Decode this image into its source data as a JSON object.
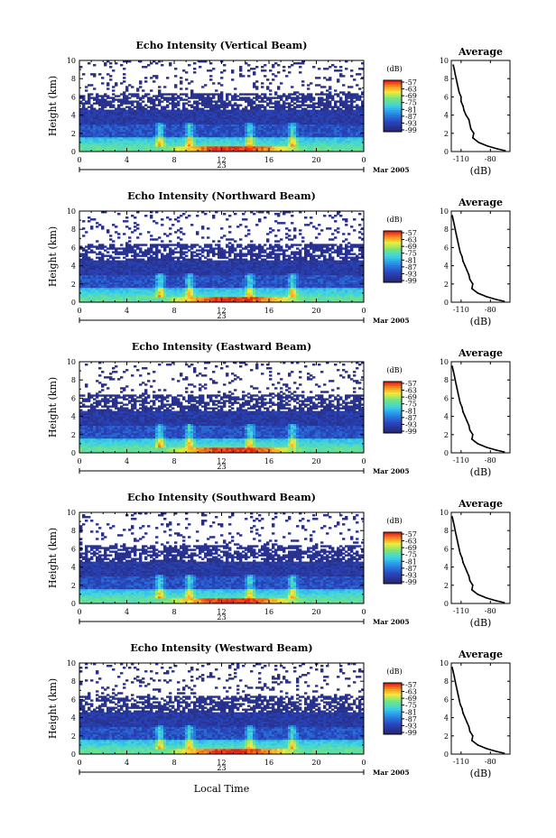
{
  "figure": {
    "xlabel": "Local Time",
    "day_label": "23",
    "date_label": "Mar 2005"
  },
  "chart_data": [
    {
      "type": "heatmap",
      "title": "Echo Intensity (Vertical Beam)",
      "ylabel": "Height (km)",
      "x_ticks": [
        "0",
        "4",
        "8",
        "12",
        "16",
        "20",
        "0"
      ],
      "y_ticks": [
        "0",
        "2",
        "4",
        "6",
        "8",
        "10"
      ],
      "xlim": [
        0,
        24
      ],
      "ylim": [
        0,
        10
      ],
      "colorbar": {
        "label": "(dB)",
        "ticks": [
          "-57",
          "-63",
          "-69",
          "-75",
          "-81",
          "-87",
          "-93",
          "-99"
        ]
      },
      "profile": {
        "title": "Average",
        "xlabel": "(dB)",
        "x_ticks": [
          "-110",
          "-80"
        ],
        "xlim": [
          -120,
          -60
        ],
        "y_ticks": [
          "0",
          "2",
          "4",
          "6",
          "8",
          "10"
        ],
        "ylim": [
          0,
          10
        ],
        "heights": [
          0.1,
          0.3,
          0.6,
          1.0,
          1.5,
          2.0,
          2.5,
          3.0,
          3.5,
          4.0,
          4.5,
          5.0,
          5.5,
          6.0,
          6.5,
          7.0,
          7.5,
          8.0,
          8.5,
          9.0,
          9.5
        ],
        "values": [
          -65,
          -73,
          -83,
          -92,
          -98,
          -97,
          -100,
          -101,
          -102,
          -105,
          -107,
          -108,
          -110,
          -110,
          -112,
          -113,
          -114,
          -115,
          -116,
          -117,
          -118
        ]
      }
    },
    {
      "type": "heatmap",
      "title": "Echo Intensity (Northward Beam)",
      "ylabel": "Height (km)",
      "x_ticks": [
        "0",
        "4",
        "8",
        "12",
        "16",
        "20",
        "0"
      ],
      "y_ticks": [
        "0",
        "2",
        "4",
        "6",
        "8",
        "10"
      ],
      "xlim": [
        0,
        24
      ],
      "ylim": [
        0,
        10
      ],
      "colorbar": {
        "label": "(dB)",
        "ticks": [
          "-57",
          "-63",
          "-69",
          "-75",
          "-81",
          "-87",
          "-93",
          "-99"
        ]
      },
      "profile": {
        "title": "Average",
        "xlabel": "(dB)",
        "x_ticks": [
          "-110",
          "-80"
        ],
        "xlim": [
          -120,
          -60
        ],
        "y_ticks": [
          "0",
          "2",
          "4",
          "6",
          "8",
          "10"
        ],
        "ylim": [
          0,
          10
        ],
        "heights": [
          0.1,
          0.3,
          0.6,
          1.0,
          1.5,
          2.0,
          2.5,
          3.0,
          3.5,
          4.0,
          4.5,
          5.0,
          5.5,
          6.0,
          6.5,
          7.0,
          7.5,
          8.0,
          8.5,
          9.0,
          9.5
        ],
        "values": [
          -66,
          -74,
          -84,
          -93,
          -99,
          -98,
          -101,
          -102,
          -104,
          -106,
          -108,
          -109,
          -111,
          -112,
          -113,
          -114,
          -115,
          -116,
          -117,
          -118,
          -119
        ]
      }
    },
    {
      "type": "heatmap",
      "title": "Echo Intensity (Eastward Beam)",
      "ylabel": "Height (km)",
      "x_ticks": [
        "0",
        "4",
        "8",
        "12",
        "16",
        "20",
        "0"
      ],
      "y_ticks": [
        "0",
        "2",
        "4",
        "6",
        "8",
        "10"
      ],
      "xlim": [
        0,
        24
      ],
      "ylim": [
        0,
        10
      ],
      "colorbar": {
        "label": "(dB)",
        "ticks": [
          "-57",
          "-63",
          "-69",
          "-75",
          "-81",
          "-87",
          "-93",
          "-99"
        ]
      },
      "profile": {
        "title": "Average",
        "xlabel": "(dB)",
        "x_ticks": [
          "-110",
          "-80"
        ],
        "xlim": [
          -120,
          -60
        ],
        "y_ticks": [
          "0",
          "2",
          "4",
          "6",
          "8",
          "10"
        ],
        "ylim": [
          0,
          10
        ],
        "heights": [
          0.1,
          0.3,
          0.6,
          1.0,
          1.5,
          2.0,
          2.5,
          3.0,
          3.5,
          4.0,
          4.5,
          5.0,
          5.5,
          6.0,
          6.5,
          7.0,
          7.5,
          8.0,
          8.5,
          9.0,
          9.5
        ],
        "values": [
          -66,
          -74,
          -84,
          -93,
          -99,
          -98,
          -101,
          -102,
          -104,
          -106,
          -108,
          -109,
          -111,
          -112,
          -113,
          -114,
          -115,
          -116,
          -117,
          -118,
          -119
        ]
      }
    },
    {
      "type": "heatmap",
      "title": "Echo Intensity (Southward Beam)",
      "ylabel": "Height (km)",
      "x_ticks": [
        "0",
        "4",
        "8",
        "12",
        "16",
        "20",
        "0"
      ],
      "y_ticks": [
        "0",
        "2",
        "4",
        "6",
        "8",
        "10"
      ],
      "xlim": [
        0,
        24
      ],
      "ylim": [
        0,
        10
      ],
      "colorbar": {
        "label": "(dB)",
        "ticks": [
          "-57",
          "-63",
          "-69",
          "-75",
          "-81",
          "-87",
          "-93",
          "-99"
        ]
      },
      "profile": {
        "title": "Average",
        "xlabel": "(dB)",
        "x_ticks": [
          "-110",
          "-80"
        ],
        "xlim": [
          -120,
          -60
        ],
        "y_ticks": [
          "0",
          "2",
          "4",
          "6",
          "8",
          "10"
        ],
        "ylim": [
          0,
          10
        ],
        "heights": [
          0.1,
          0.3,
          0.6,
          1.0,
          1.5,
          2.0,
          2.5,
          3.0,
          3.5,
          4.0,
          4.5,
          5.0,
          5.5,
          6.0,
          6.5,
          7.0,
          7.5,
          8.0,
          8.5,
          9.0,
          9.5
        ],
        "values": [
          -66,
          -74,
          -84,
          -93,
          -99,
          -98,
          -101,
          -102,
          -104,
          -106,
          -108,
          -109,
          -111,
          -112,
          -113,
          -114,
          -115,
          -116,
          -117,
          -118,
          -119
        ]
      }
    },
    {
      "type": "heatmap",
      "title": "Echo Intensity (Westward Beam)",
      "ylabel": "Height (km)",
      "x_ticks": [
        "0",
        "4",
        "8",
        "12",
        "16",
        "20",
        "0"
      ],
      "y_ticks": [
        "0",
        "2",
        "4",
        "6",
        "8",
        "10"
      ],
      "xlim": [
        0,
        24
      ],
      "ylim": [
        0,
        10
      ],
      "colorbar": {
        "label": "(dB)",
        "ticks": [
          "-57",
          "-63",
          "-69",
          "-75",
          "-81",
          "-87",
          "-93",
          "-99"
        ]
      },
      "profile": {
        "title": "Average",
        "xlabel": "(dB)",
        "x_ticks": [
          "-110",
          "-80"
        ],
        "xlim": [
          -120,
          -60
        ],
        "y_ticks": [
          "0",
          "2",
          "4",
          "6",
          "8",
          "10"
        ],
        "ylim": [
          0,
          10
        ],
        "heights": [
          0.1,
          0.3,
          0.6,
          1.0,
          1.5,
          2.0,
          2.5,
          3.0,
          3.5,
          4.0,
          4.5,
          5.0,
          5.5,
          6.0,
          6.5,
          7.0,
          7.5,
          8.0,
          8.5,
          9.0,
          9.5
        ],
        "values": [
          -66,
          -74,
          -84,
          -93,
          -99,
          -98,
          -101,
          -102,
          -104,
          -106,
          -108,
          -109,
          -111,
          -112,
          -113,
          -114,
          -115,
          -116,
          -117,
          -118,
          -119
        ]
      }
    }
  ]
}
